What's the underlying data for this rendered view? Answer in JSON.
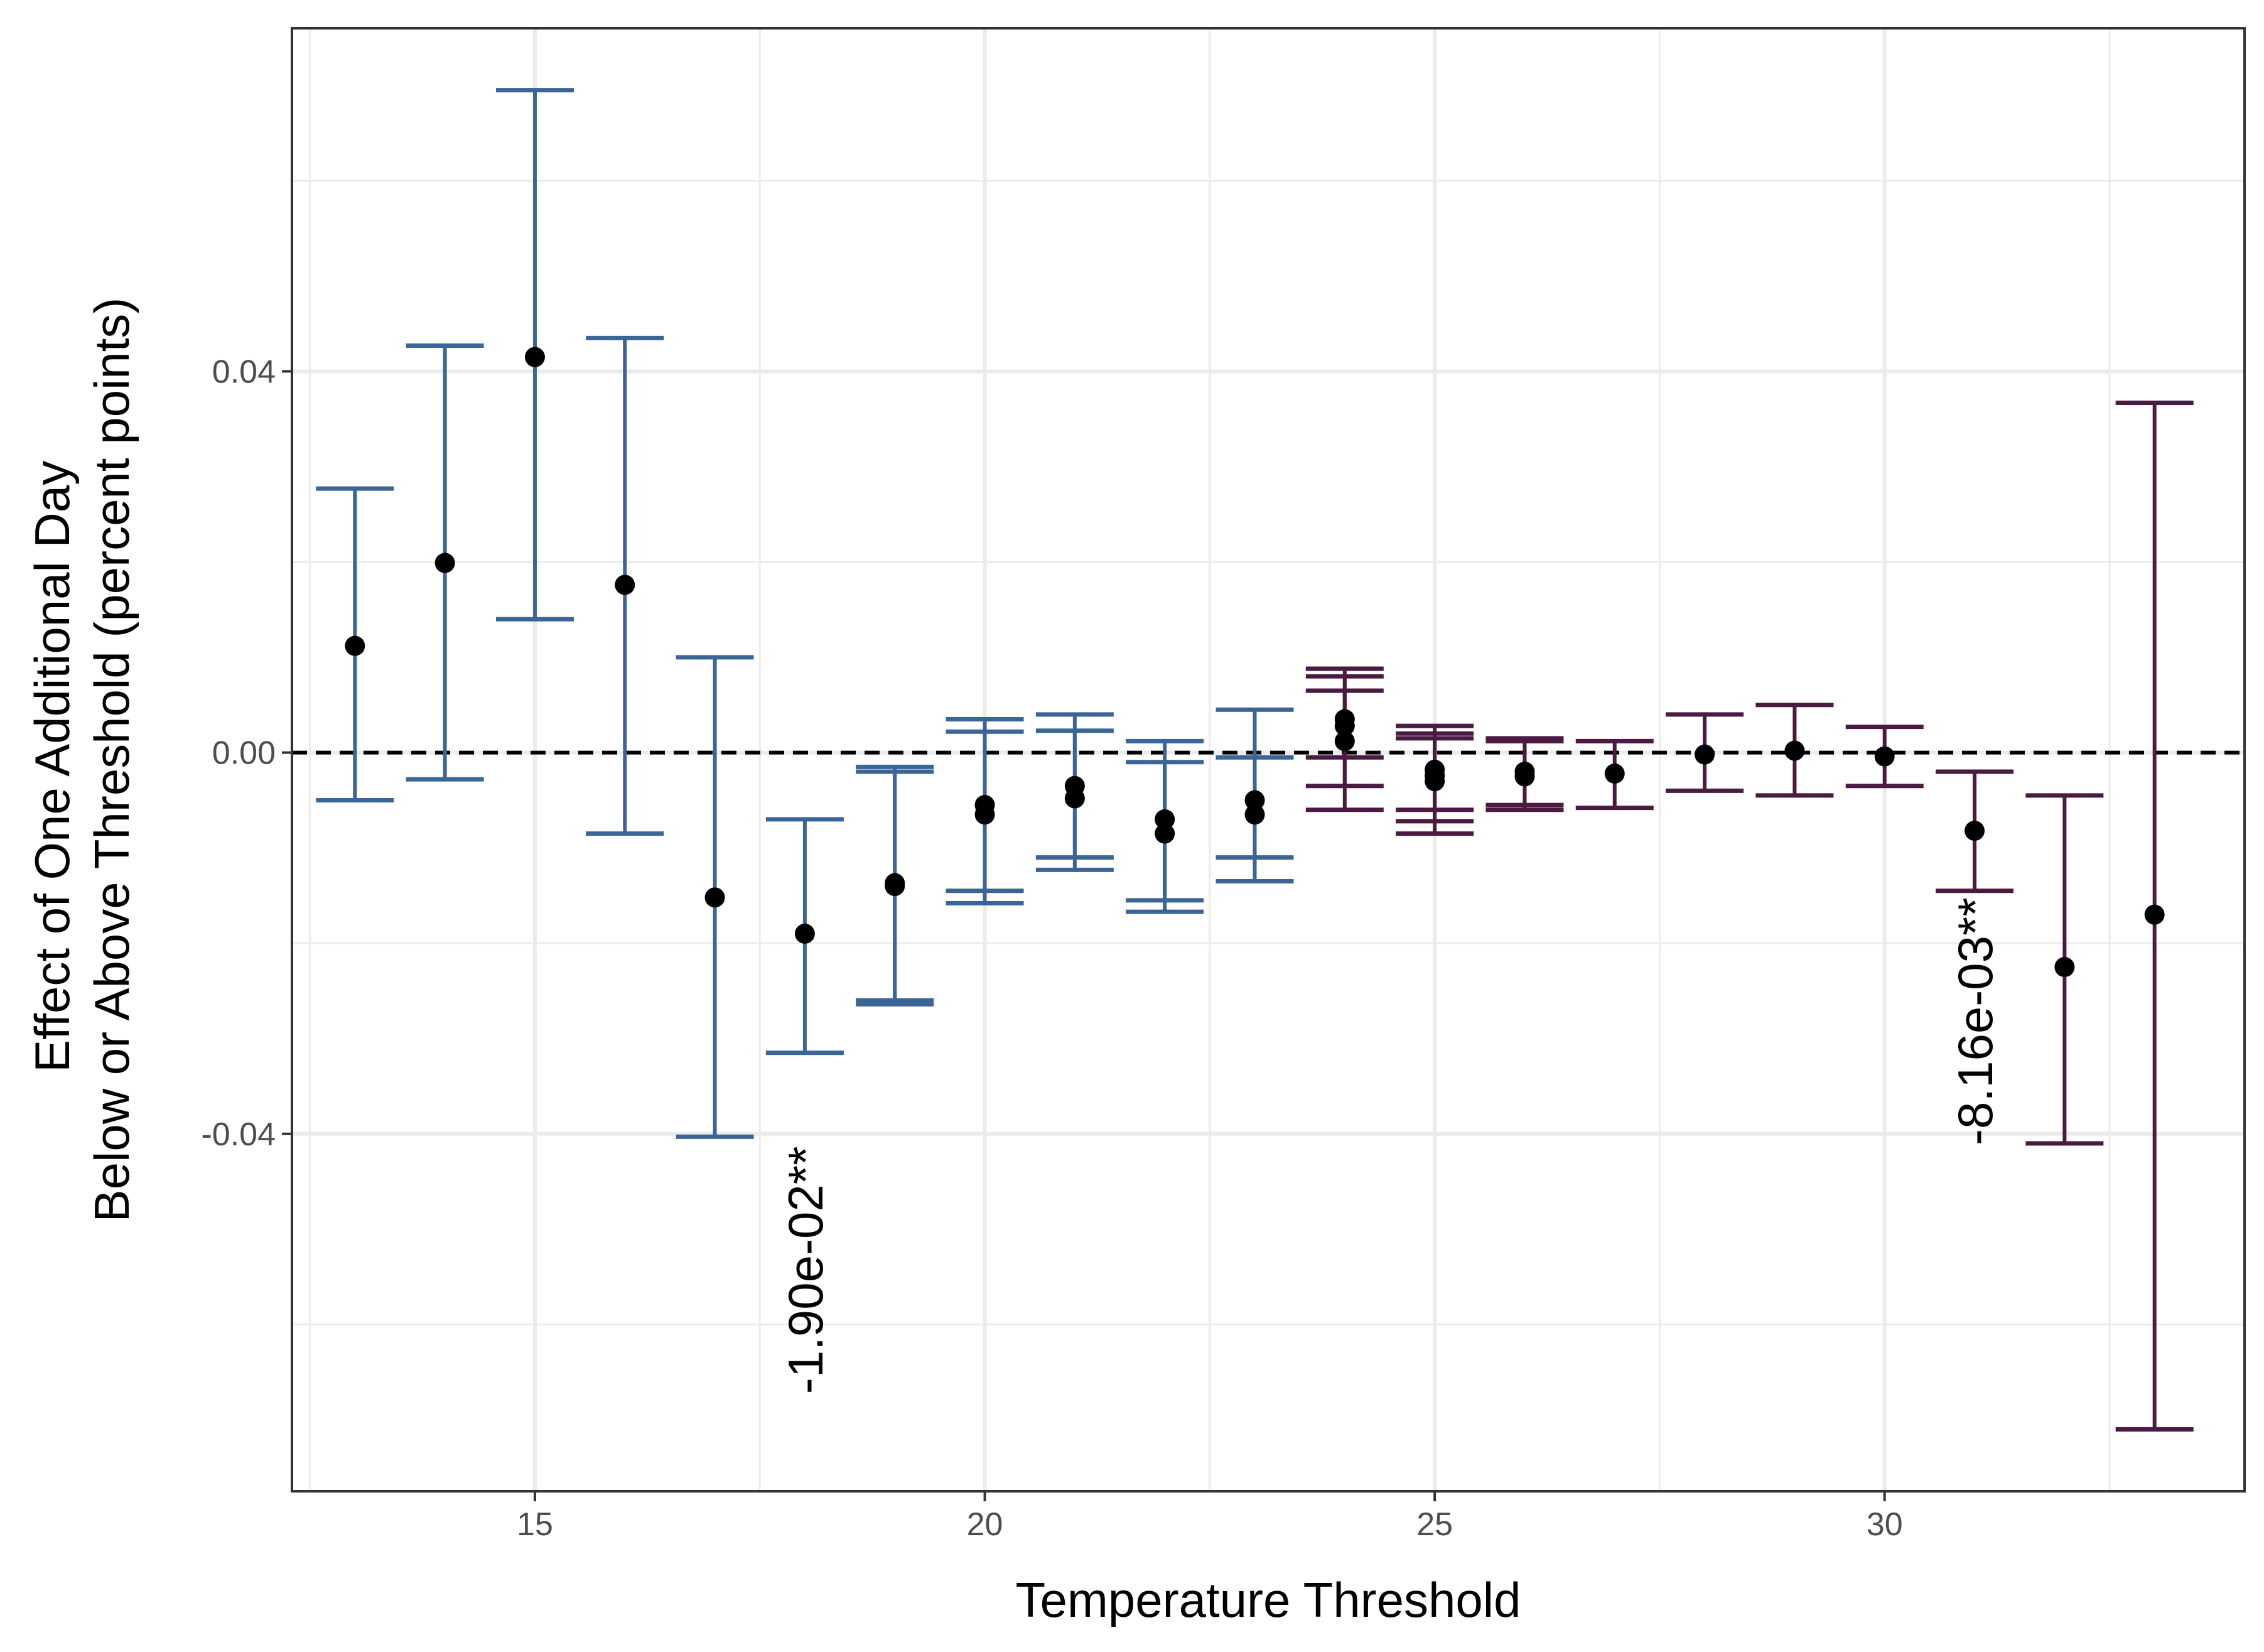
{
  "chart_data": {
    "type": "scatter",
    "xlabel": "Temperature Threshold",
    "ylabel_lines": [
      "Effect of One Additional Day",
      "Below or Above Threshold (percent points)"
    ],
    "xlim": [
      12.3,
      34.0
    ],
    "ylim": [
      -0.0775,
      0.076
    ],
    "x_ticks": [
      15,
      20,
      25,
      30
    ],
    "x_tick_labels": [
      "15",
      "20",
      "25",
      "30"
    ],
    "y_ticks": [
      -0.04,
      0.0,
      0.04
    ],
    "y_tick_labels": [
      "-0.04",
      "0.00",
      "0.04"
    ],
    "minor_x_grid": [
      12.5,
      17.5,
      22.5,
      27.5,
      32.5
    ],
    "minor_y_grid": [
      -0.06,
      -0.02,
      0.02,
      0.06
    ],
    "grid": true,
    "reference_line": {
      "y": 0,
      "style": "dashed",
      "color": "#000000"
    },
    "colors": {
      "below_threshold": "#3b6596",
      "above_threshold": "#4a1a40",
      "point": "#000000",
      "grid": "#ebebeb",
      "panel_border": "#333333"
    },
    "series": [
      {
        "color_key": "below_threshold",
        "points": [
          {
            "x": 13,
            "y": 0.0112,
            "lo": -0.005,
            "hi": 0.0277
          },
          {
            "x": 14,
            "y": 0.0199,
            "lo": -0.0028,
            "hi": 0.0427
          },
          {
            "x": 15,
            "y": 0.0415,
            "lo": 0.014,
            "hi": 0.0695
          },
          {
            "x": 16,
            "y": 0.0176,
            "lo": -0.0085,
            "hi": 0.0435
          },
          {
            "x": 17,
            "y": -0.0152,
            "lo": -0.0403,
            "hi": 0.01
          },
          {
            "x": 18,
            "y": -0.019,
            "lo": -0.0315,
            "hi": -0.007
          },
          {
            "x": 19,
            "y": -0.0137,
            "lo": -0.026,
            "hi": -0.0015
          },
          {
            "x": 19,
            "y": -0.014,
            "lo": -0.0264,
            "hi": -0.002
          },
          {
            "x": 20,
            "y": -0.0055,
            "lo": -0.0145,
            "hi": 0.0035
          },
          {
            "x": 20,
            "y": -0.0065,
            "lo": -0.0158,
            "hi": 0.0022
          },
          {
            "x": 21,
            "y": -0.0035,
            "lo": -0.011,
            "hi": 0.004
          },
          {
            "x": 21,
            "y": -0.0048,
            "lo": -0.0123,
            "hi": 0.0023
          },
          {
            "x": 22,
            "y": -0.007,
            "lo": -0.0155,
            "hi": 0.0012
          },
          {
            "x": 22,
            "y": -0.0085,
            "lo": -0.0167,
            "hi": -0.001
          },
          {
            "x": 23,
            "y": -0.005,
            "lo": -0.011,
            "hi": 0.0045
          },
          {
            "x": 23,
            "y": -0.0065,
            "lo": -0.0135,
            "hi": -0.0005
          }
        ]
      },
      {
        "color_key": "above_threshold",
        "points": [
          {
            "x": 24,
            "y": 0.0035,
            "lo": -0.0005,
            "hi": 0.0088
          },
          {
            "x": 24,
            "y": 0.0012,
            "lo": -0.006,
            "hi": 0.008
          },
          {
            "x": 24,
            "y": 0.0028,
            "lo": -0.0035,
            "hi": 0.0065
          },
          {
            "x": 25,
            "y": -0.0018,
            "lo": -0.006,
            "hi": 0.0028
          },
          {
            "x": 25,
            "y": -0.003,
            "lo": -0.0085,
            "hi": 0.0015
          },
          {
            "x": 25,
            "y": -0.0024,
            "lo": -0.0072,
            "hi": 0.002
          },
          {
            "x": 26,
            "y": -0.002,
            "lo": -0.0055,
            "hi": 0.0015
          },
          {
            "x": 26,
            "y": -0.0025,
            "lo": -0.006,
            "hi": 0.0012
          },
          {
            "x": 27,
            "y": -0.0022,
            "lo": -0.0058,
            "hi": 0.0012
          },
          {
            "x": 28,
            "y": -0.0002,
            "lo": -0.004,
            "hi": 0.004
          },
          {
            "x": 29,
            "y": 0.0002,
            "lo": -0.0045,
            "hi": 0.005
          },
          {
            "x": 30,
            "y": -0.0004,
            "lo": -0.0035,
            "hi": 0.0027
          },
          {
            "x": 31,
            "y": -0.0082,
            "lo": -0.0145,
            "hi": -0.002
          },
          {
            "x": 32,
            "y": -0.0225,
            "lo": -0.041,
            "hi": -0.0045
          },
          {
            "x": 33,
            "y": -0.017,
            "lo": -0.071,
            "hi": 0.0367
          }
        ]
      }
    ],
    "annotations": [
      {
        "text": "-1.90e-02**",
        "x": 18,
        "y": -0.0413,
        "rotation": -90
      },
      {
        "text": "-8.16e-03**",
        "x": 31,
        "y": -0.0152,
        "rotation": -90
      }
    ]
  }
}
